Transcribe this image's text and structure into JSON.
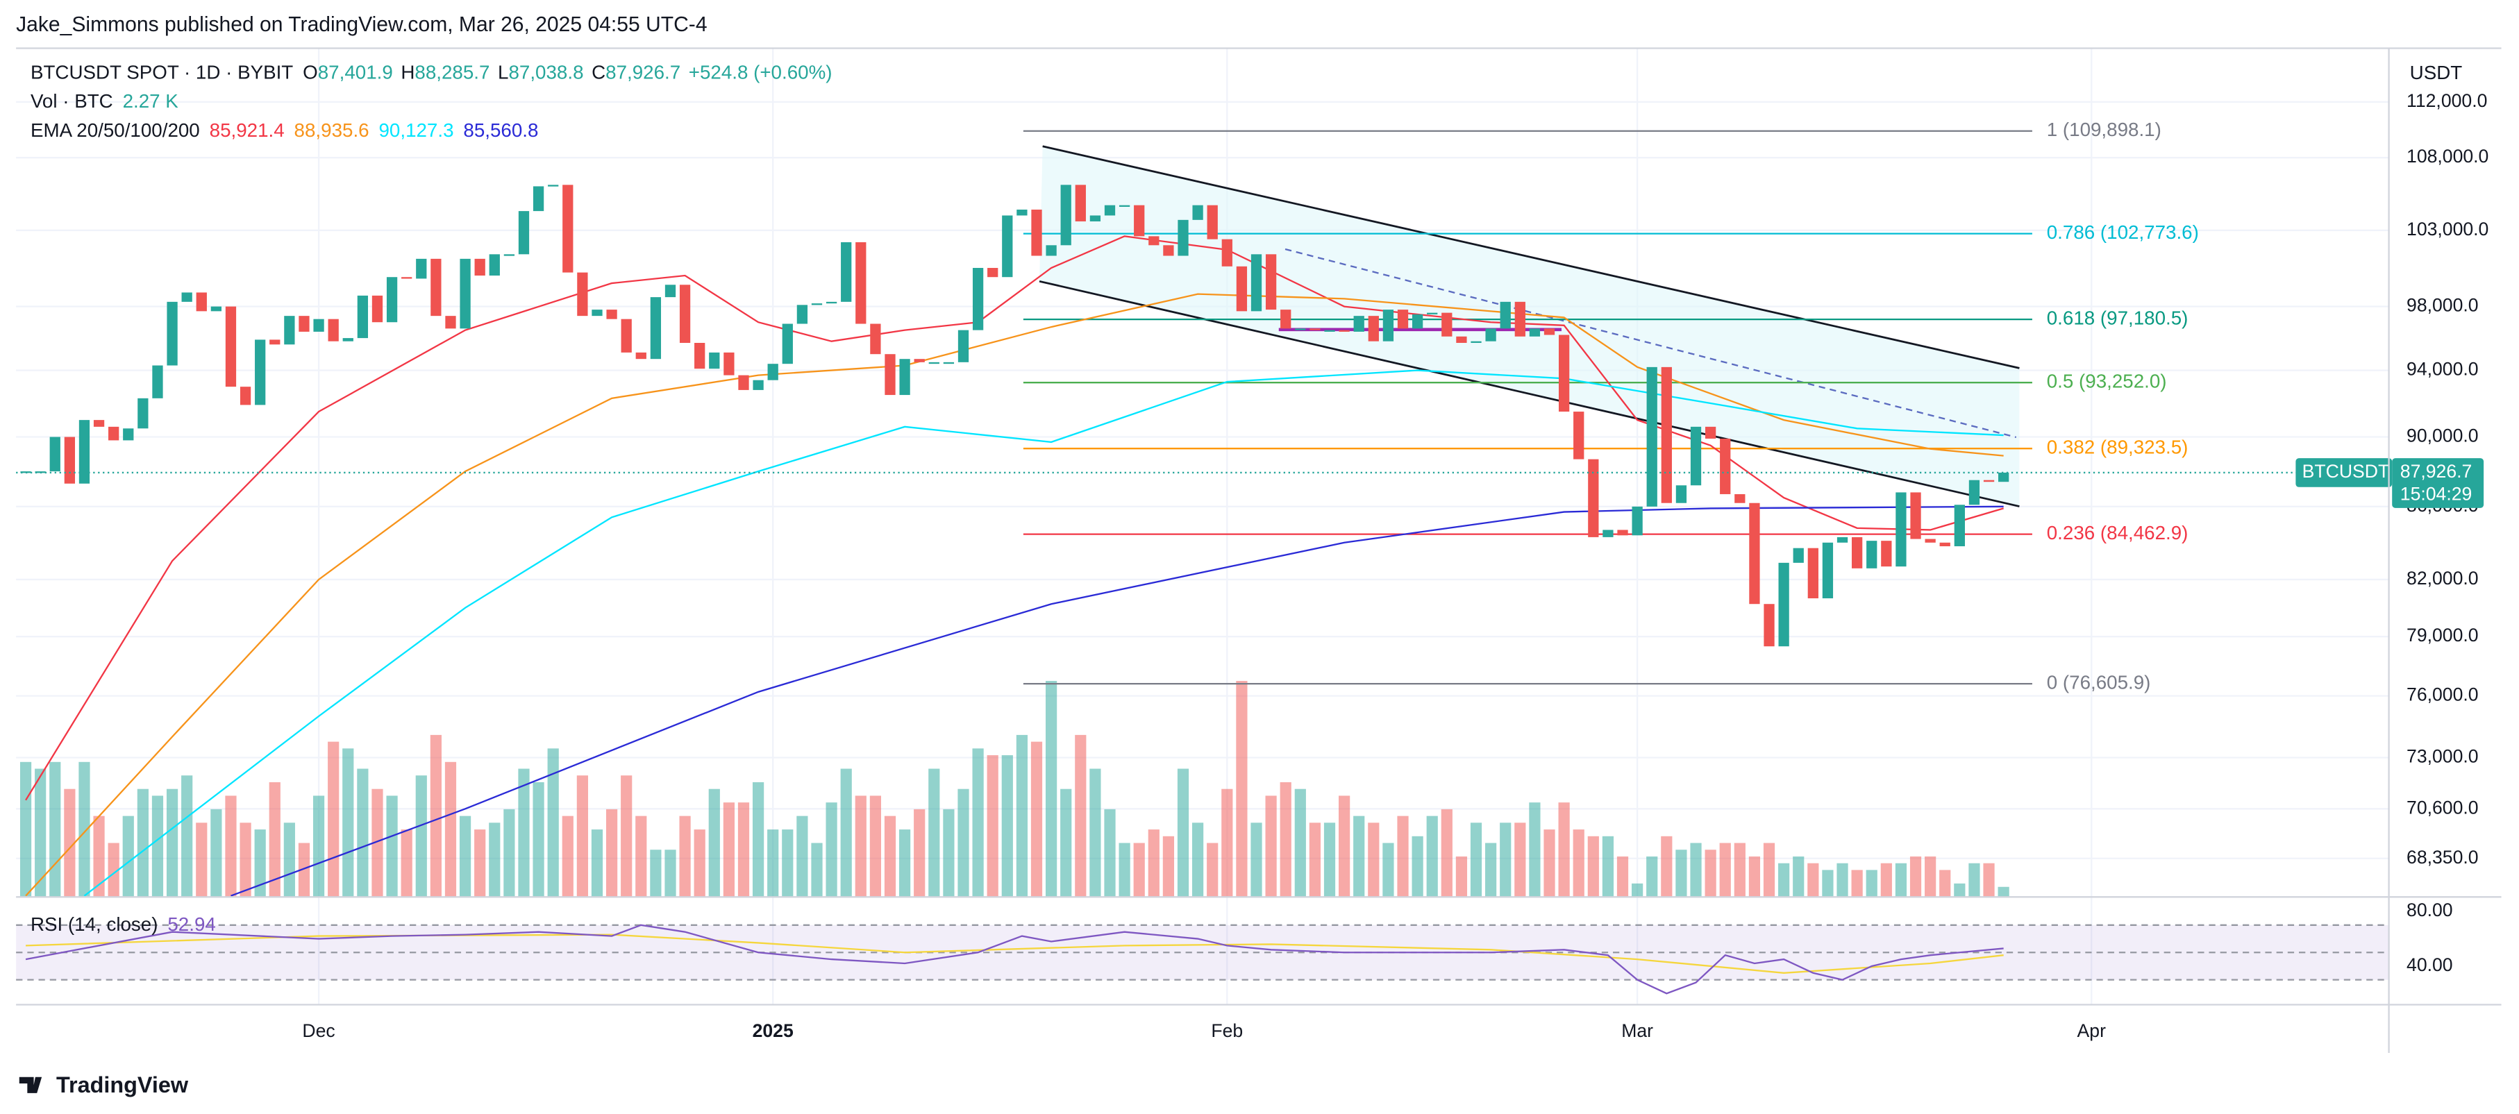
{
  "publisher": "Jake_Simmons published on TradingView.com, Mar 26, 2025 04:55 UTC-4",
  "brand": "TradingView",
  "chart_data": {
    "type": "candlestick",
    "symbol": "BTCUSDT SPOT · 1D · BYBIT",
    "currency": "USDT",
    "ohlc": [
      {
        "key": "O",
        "value": 87401.9,
        "label": "87,401.9"
      },
      {
        "key": "H",
        "value": 88285.7,
        "label": "88,285.7"
      },
      {
        "key": "L",
        "value": 87038.8,
        "label": "87,038.8"
      },
      {
        "key": "C",
        "value": 87926.7,
        "label": "87,926.7"
      }
    ],
    "change": "+524.8 (+0.60%)",
    "volume_label": "Vol · BTC",
    "volume_last": {
      "value": 2.27,
      "label": "2.27 K"
    },
    "ema_label": "EMA 20/50/100/200",
    "ema": [
      {
        "color": "#f23645",
        "x": [
          0,
          10,
          20,
          30,
          40,
          45,
          50,
          55,
          60,
          65,
          70,
          75,
          82,
          90,
          100,
          105,
          110,
          115,
          120,
          125,
          130,
          135
        ],
        "values": [
          71000,
          83000,
          91500,
          96500,
          99500,
          100000,
          97000,
          95800,
          96500,
          97000,
          100500,
          102600,
          101700,
          98000,
          97000,
          96800,
          91000,
          89500,
          86500,
          84800,
          84700,
          85900
        ],
        "last": {
          "value": 85921.4,
          "label": "85,921.4"
        }
      },
      {
        "color": "#f7931a",
        "x": [
          0,
          10,
          20,
          30,
          40,
          50,
          60,
          70,
          80,
          90,
          100,
          105,
          110,
          120,
          130,
          135
        ],
        "values": [
          66700,
          74000,
          82000,
          88000,
          92300,
          93700,
          94300,
          96700,
          98800,
          98500,
          97700,
          97300,
          94200,
          91000,
          89300,
          88900
        ],
        "last": {
          "value": 88935.6,
          "label": "88,935.6"
        }
      },
      {
        "color": "#00e5ff",
        "x": [
          4,
          20,
          30,
          40,
          50,
          60,
          70,
          82,
          95,
          105,
          115,
          125,
          135
        ],
        "values": [
          66700,
          75000,
          80500,
          85400,
          88000,
          90600,
          89700,
          93300,
          94000,
          93500,
          92000,
          90500,
          90100
        ],
        "last": {
          "value": 90127.3,
          "label": "90,127.3"
        }
      },
      {
        "color": "#2a2ad6",
        "x": [
          14,
          30,
          50,
          70,
          90,
          105,
          115,
          135
        ],
        "values": [
          66700,
          70600,
          76200,
          80700,
          84000,
          85700,
          85900,
          86000
        ],
        "last": {
          "value": 85560.8,
          "label": "85,560.8"
        }
      }
    ],
    "close": [
      88000,
      88000,
      90000,
      87300,
      91000,
      90600,
      89800,
      90500,
      92300,
      94300,
      98300,
      98900,
      97700,
      98000,
      93000,
      91900,
      95900,
      95600,
      97400,
      96400,
      97200,
      95800,
      96000,
      98700,
      97000,
      99900,
      99800,
      101100,
      97400,
      96600,
      101100,
      100000,
      101400,
      101400,
      104300,
      106000,
      106100,
      100200,
      97400,
      97800,
      97200,
      95100,
      94700,
      98600,
      99400,
      95700,
      94100,
      95100,
      93700,
      92800,
      93400,
      94400,
      96900,
      98100,
      98200,
      98300,
      102200,
      96900,
      95000,
      92500,
      94700,
      94500,
      94500,
      94500,
      96500,
      100500,
      99900,
      104000,
      104400,
      101300,
      102000,
      106100,
      103600,
      104000,
      104700,
      104700,
      102600,
      102000,
      101300,
      103700,
      104700,
      102400,
      100600,
      97700,
      101400,
      97800,
      96600,
      96600,
      96500,
      96500,
      96400,
      97400,
      95800,
      97800,
      96600,
      97500,
      97600,
      96100,
      95700,
      95800,
      96600,
      98300,
      96100,
      96600,
      96200,
      91500,
      88700,
      84300,
      84700,
      84400,
      86000,
      94200,
      86200,
      87200,
      90600,
      89900,
      86700,
      86200,
      80700,
      78500,
      82900,
      83700,
      81000,
      84000,
      84300,
      82600,
      84100,
      82700,
      86800,
      84200,
      84000,
      83800,
      86100,
      87500,
      87400,
      87926.7
    ],
    "volume": [
      20,
      19,
      20,
      16,
      20,
      12,
      8,
      12,
      16,
      15,
      16,
      18,
      11,
      13,
      15,
      11,
      10,
      17,
      11,
      8,
      15,
      23,
      22,
      19,
      16,
      15,
      10,
      18,
      24,
      20,
      12,
      10,
      11,
      13,
      19,
      17,
      22,
      12,
      18,
      10,
      13,
      18,
      12,
      7,
      7,
      12,
      10,
      16,
      14,
      14,
      17,
      10,
      10,
      12,
      8,
      14,
      19,
      15,
      15,
      12,
      10,
      13,
      19,
      13,
      16,
      22,
      21,
      21,
      24,
      23,
      32,
      16,
      24,
      19,
      13,
      8,
      8,
      10,
      9,
      19,
      11,
      8,
      16,
      32,
      11,
      15,
      17,
      16,
      11,
      11,
      15,
      12,
      11,
      8,
      12,
      9,
      12,
      13,
      6,
      11,
      8,
      11,
      11,
      14,
      10,
      14,
      10,
      9,
      9,
      6,
      2,
      6,
      9,
      7,
      8,
      7,
      8,
      8,
      6,
      8,
      5,
      6,
      5,
      4,
      5,
      4,
      4,
      5,
      5,
      6,
      6,
      4,
      2,
      5,
      5,
      1.5
    ],
    "up_color": "#26a69a",
    "down_color": "#ef5350",
    "xlim": [
      -0.66,
      161.3
    ],
    "xticks": [
      {
        "value": 20,
        "label": "Dec"
      },
      {
        "value": 51,
        "label": "2025"
      },
      {
        "value": 82,
        "label": "Feb"
      },
      {
        "value": 110,
        "label": "Mar"
      },
      {
        "value": 141,
        "label": "Apr"
      }
    ],
    "ylim": [
      66650,
      116000
    ],
    "log_scale": true,
    "yticks": [
      {
        "value": 112000,
        "label": "112,000.0"
      },
      {
        "value": 108000,
        "label": "108,000.0"
      },
      {
        "value": 103000,
        "label": "103,000.0"
      },
      {
        "value": 98000,
        "label": "98,000.0"
      },
      {
        "value": 94000,
        "label": "94,000.0"
      },
      {
        "value": 90000,
        "label": "90,000.0"
      },
      {
        "value": 86000,
        "label": "86,000.0"
      },
      {
        "value": 82000,
        "label": "82,000.0"
      },
      {
        "value": 79000,
        "label": "79,000.0"
      },
      {
        "value": 76000,
        "label": "76,000.0"
      },
      {
        "value": 73000,
        "label": "73,000.0"
      },
      {
        "value": 70600,
        "label": "70,600.0"
      },
      {
        "value": 68350,
        "label": "68,350.0"
      }
    ],
    "last_price": {
      "symbol": "BTCUSDT",
      "value": 87926.7,
      "label": "87,926.7",
      "countdown": "15:04:29"
    },
    "fib_levels": [
      {
        "value": 109898.1,
        "label": "1 (109,898.1)",
        "color": "#787b86"
      },
      {
        "value": 102773.6,
        "label": "0.786 (102,773.6)",
        "color": "#00bcd4"
      },
      {
        "value": 97180.5,
        "label": "0.618 (97,180.5)",
        "color": "#089981"
      },
      {
        "value": 93252.0,
        "label": "0.5 (93,252.0)",
        "color": "#4caf50"
      },
      {
        "value": 89323.5,
        "label": "0.382 (89,323.5)",
        "color": "#ff9800"
      },
      {
        "value": 84462.9,
        "label": "0.236 (84,462.9)",
        "color": "#f23645"
      },
      {
        "value": 76605.9,
        "label": "0 (76,605.9)",
        "color": "#787b86"
      }
    ],
    "rsi": {
      "title": "RSI (14, close)",
      "value": {
        "value": 52.94,
        "label": "52.94"
      },
      "ylim": [
        11.8,
        88.2
      ],
      "yticks": [
        {
          "value": 80,
          "label": "80.00"
        },
        {
          "value": 40,
          "label": "40.00"
        }
      ],
      "bands": [
        70,
        50,
        30
      ],
      "color": "#7e57c2",
      "ma_color": "#f5d63d",
      "x": [
        0,
        10,
        20,
        25,
        30,
        35,
        40,
        42,
        45,
        50,
        55,
        60,
        65,
        68,
        70,
        75,
        80,
        82,
        85,
        90,
        95,
        100,
        105,
        108,
        110,
        112,
        114,
        116,
        118,
        120,
        122,
        124,
        126,
        128,
        130,
        132,
        135
      ],
      "values": [
        45,
        65,
        60,
        62,
        63,
        65,
        62,
        70,
        65,
        50,
        45,
        42,
        50,
        62,
        58,
        65,
        60,
        55,
        52,
        50,
        50,
        50,
        52,
        48,
        30,
        20,
        28,
        48,
        42,
        45,
        35,
        30,
        40,
        45,
        48,
        50,
        52.94
      ],
      "ma_x": [
        0,
        20,
        40,
        50,
        60,
        75,
        85,
        100,
        110,
        120,
        130,
        135
      ],
      "ma_values": [
        55,
        62,
        63,
        57,
        50,
        55,
        56,
        52,
        45,
        35,
        42,
        48
      ]
    }
  }
}
